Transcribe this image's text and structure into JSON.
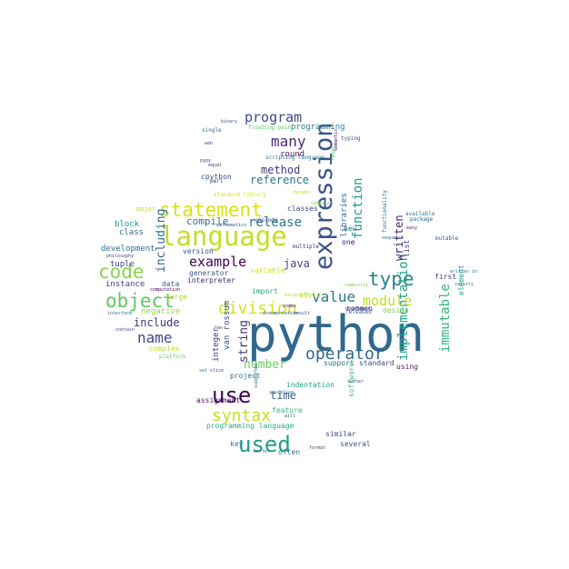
{
  "word_cloud": {
    "words": [
      {
        "text": "python",
        "color": "#31688e"
      },
      {
        "text": "language",
        "color": "#c2df23"
      },
      {
        "text": "expression",
        "color": "#3b528b"
      },
      {
        "text": "statement",
        "color": "#d8e219"
      },
      {
        "text": "object",
        "color": "#5ec962"
      },
      {
        "text": "code",
        "color": "#86d549"
      },
      {
        "text": "use",
        "color": "#440154"
      },
      {
        "text": "used",
        "color": "#1f9e89"
      },
      {
        "text": "operator",
        "color": "#31688e"
      },
      {
        "text": "type",
        "color": "#26828e"
      },
      {
        "text": "syntax",
        "color": "#c8e020"
      },
      {
        "text": "implementation",
        "color": "#20a386"
      },
      {
        "text": "function",
        "color": "#1f9a8a"
      },
      {
        "text": "immutable",
        "color": "#35b779"
      },
      {
        "text": "division",
        "color": "#d2e21b"
      },
      {
        "text": "program",
        "color": "#3e4a89"
      },
      {
        "text": "many",
        "color": "#482878"
      },
      {
        "text": "string",
        "color": "#46337e"
      },
      {
        "text": "value",
        "color": "#2a788e"
      },
      {
        "text": "module",
        "color": "#bddf26"
      },
      {
        "text": "name",
        "color": "#3f4788"
      },
      {
        "text": "example",
        "color": "#440154"
      },
      {
        "text": "including",
        "color": "#31688e"
      },
      {
        "text": "release",
        "color": "#2a788e"
      },
      {
        "text": "reference",
        "color": "#2d708e"
      },
      {
        "text": "method",
        "color": "#443a83"
      },
      {
        "text": "number",
        "color": "#6ccd5a"
      },
      {
        "text": "written",
        "color": "#481f70"
      },
      {
        "text": "time",
        "color": "#38588c"
      },
      {
        "text": "java",
        "color": "#3e4989"
      },
      {
        "text": "compile",
        "color": "#2d708e"
      },
      {
        "text": "include",
        "color": "#46337e"
      },
      {
        "text": "libraries",
        "color": "#32648e"
      },
      {
        "text": "integer",
        "color": "#424086"
      },
      {
        "text": "van rossum",
        "color": "#3b528b"
      },
      {
        "text": "round",
        "color": "#481769"
      },
      {
        "text": "programming",
        "color": "#277f8e"
      },
      {
        "text": "class",
        "color": "#31688e"
      },
      {
        "text": "block",
        "color": "#21908d"
      },
      {
        "text": "development",
        "color": "#2c728e"
      },
      {
        "text": "tuple",
        "color": "#3e4989"
      },
      {
        "text": "instance",
        "color": "#414487"
      },
      {
        "text": "negative",
        "color": "#8fd744"
      },
      {
        "text": "complex",
        "color": "#b8de29"
      },
      {
        "text": "generator",
        "color": "#3b528b"
      },
      {
        "text": "interpreter",
        "color": "#482576"
      },
      {
        "text": "large",
        "color": "#a8db34"
      },
      {
        "text": "data",
        "color": "#355f8d"
      },
      {
        "text": "version",
        "color": "#39568c"
      },
      {
        "text": "variable",
        "color": "#d0e11c"
      },
      {
        "text": "style",
        "color": "#b5de2b"
      },
      {
        "text": "import",
        "color": "#22a884"
      },
      {
        "text": "common",
        "color": "#46307e"
      },
      {
        "text": "design",
        "color": "#7ad151"
      },
      {
        "text": "support",
        "color": "#2e6e8e"
      },
      {
        "text": "standard",
        "color": "#3f4788"
      },
      {
        "text": "using",
        "color": "#482173"
      },
      {
        "text": "first",
        "color": "#3f4788"
      },
      {
        "text": "list",
        "color": "#453781"
      },
      {
        "text": "one",
        "color": "#481769"
      },
      {
        "text": "new",
        "color": "#2c728e"
      },
      {
        "text": "feature",
        "color": "#35b779"
      },
      {
        "text": "indentation",
        "color": "#1fa287"
      },
      {
        "text": "assignment",
        "color": "#471365"
      },
      {
        "text": "project",
        "color": "#2c728e"
      },
      {
        "text": "programming language",
        "color": "#27ad81"
      },
      {
        "text": "software",
        "color": "#4ac16d"
      },
      {
        "text": "similar",
        "color": "#3f4788"
      },
      {
        "text": "several",
        "color": "#38588c"
      },
      {
        "text": "key",
        "color": "#2a788e"
      },
      {
        "text": "often",
        "color": "#2a788e"
      },
      {
        "text": "element",
        "color": "#1f9a8a"
      },
      {
        "text": "cpython",
        "color": "#3b528b"
      },
      {
        "text": "classes",
        "color": "#3e4a89"
      },
      {
        "text": "major",
        "color": "#c0df25"
      },
      {
        "text": "scripting language",
        "color": "#2c728e"
      },
      {
        "text": "floating point",
        "color": "#5ec962"
      },
      {
        "text": "semantic",
        "color": "#440154"
      },
      {
        "text": "typing",
        "color": "#3b528b"
      },
      {
        "text": "standard library",
        "color": "#d8e219"
      },
      {
        "text": "available",
        "color": "#2a788e"
      },
      {
        "text": "package",
        "color": "#31688e"
      },
      {
        "text": "mutable",
        "color": "#3b528b"
      },
      {
        "text": "multiple",
        "color": "#482878"
      },
      {
        "text": "developer",
        "color": "#3e4989"
      },
      {
        "text": "released",
        "color": "#31688e"
      },
      {
        "text": "community",
        "color": "#7ad151"
      },
      {
        "text": "functionality",
        "color": "#2c728e"
      },
      {
        "text": "documentation",
        "color": "#31688e"
      },
      {
        "text": "exception",
        "color": "#b5de2b"
      },
      {
        "text": "result",
        "color": "#3e4989"
      },
      {
        "text": "index",
        "color": "#482576"
      },
      {
        "text": "platform",
        "color": "#6ccd5a"
      },
      {
        "text": "philosophy",
        "color": "#414487"
      },
      {
        "text": "computation",
        "color": "#440154"
      },
      {
        "text": "interface",
        "color": "#31688e"
      },
      {
        "text": "contain",
        "color": "#3e4989"
      },
      {
        "text": "mathematics",
        "color": "#3b528b"
      },
      {
        "text": "perl",
        "color": "#482878"
      },
      {
        "text": "equal",
        "color": "#46337e"
      },
      {
        "text": "pypy",
        "color": "#3e4989"
      },
      {
        "text": "web",
        "color": "#3b528b"
      },
      {
        "text": "single",
        "color": "#31688e"
      },
      {
        "text": "sequence",
        "color": "#2c728e"
      },
      {
        "text": "range",
        "color": "#4ac16d"
      },
      {
        "text": "unicode",
        "color": "#3e4989"
      },
      {
        "text": "written in",
        "color": "#2c728e"
      },
      {
        "text": "variety",
        "color": "#1f9a8a"
      },
      {
        "text": "binary",
        "color": "#3b528b"
      },
      {
        "text": "slice",
        "color": "#414487"
      },
      {
        "text": "set",
        "color": "#31688e"
      },
      {
        "text": "two",
        "color": "#3e4989"
      },
      {
        "text": "easy",
        "color": "#482576"
      },
      {
        "text": "will",
        "color": "#3b528b"
      },
      {
        "text": "format",
        "color": "#3e4989"
      },
      {
        "text": "better",
        "color": "#31688e"
      },
      {
        "text": "rather",
        "color": "#3b528b"
      },
      {
        "text": "supported",
        "color": "#31688e"
      },
      {
        "text": "operation",
        "color": "#2c728e"
      },
      {
        "text": "dynamic",
        "color": "#c0df25"
      },
      {
        "text": "compiler",
        "color": "#7ad151"
      }
    ]
  }
}
